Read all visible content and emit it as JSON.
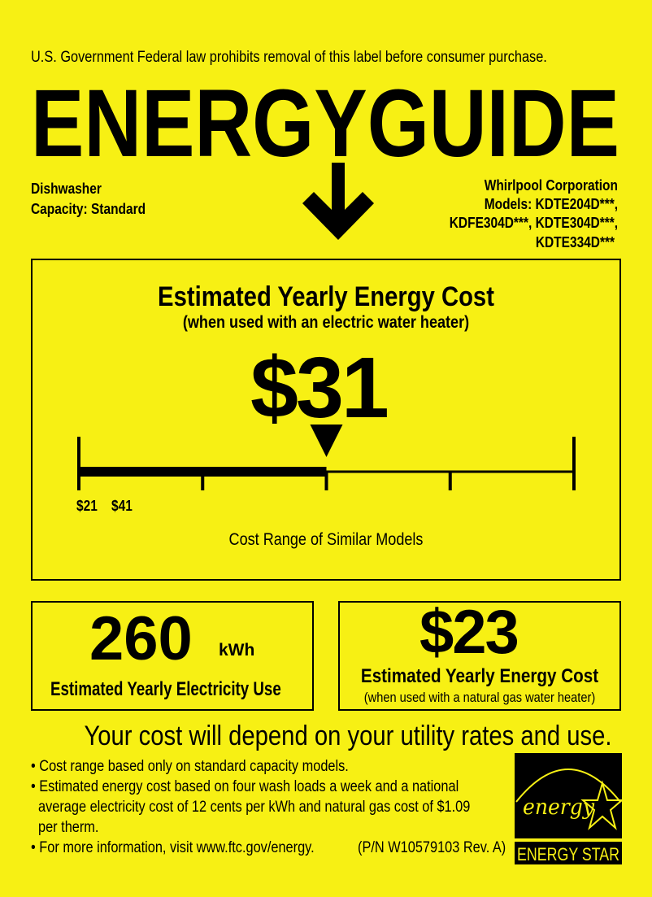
{
  "header": {
    "notice": "U.S. Government  Federal law prohibits removal of this label before consumer purchase.",
    "logo_text": "ENERGYGUIDE"
  },
  "product": {
    "type": "Dishwasher",
    "capacity": "Capacity: Standard"
  },
  "manufacturer": {
    "name": "Whirlpool Corporation",
    "models_line1": "Models: KDTE204D***,",
    "models_line2": "KDFE304D***, KDTE304D***,",
    "models_line3": "KDTE334D***"
  },
  "main_cost": {
    "title": "Estimated Yearly Energy Cost",
    "subtitle": "(when used with an electric water heater)",
    "value": "$31",
    "range_low_label": "$21",
    "range_high_label": "$41",
    "range_low": 21,
    "range_high": 41,
    "marker_value": 31,
    "range_caption": "Cost Range of Similar Models"
  },
  "electricity": {
    "value": "260",
    "unit": "kWh",
    "label": "Estimated Yearly Electricity Use"
  },
  "gas_cost": {
    "value": "$23",
    "label": "Estimated Yearly Energy Cost",
    "sublabel": "(when used with a natural gas water heater)"
  },
  "footer": {
    "headline": "Your cost will depend on your utility rates and use.",
    "bullets": [
      "Cost range based only on standard capacity models.",
      "Estimated energy cost based on four wash loads a week and a national",
      "average electricity cost of 12 cents per kWh and natural gas cost of $1.09",
      "per therm.",
      "For more information, visit www.ftc.gov/energy."
    ],
    "part_number": "(P/N W10579103 Rev. A)"
  },
  "energy_star": {
    "script_text": "energy",
    "label": "ENERGY STAR"
  },
  "colors": {
    "background": "#f7f014",
    "ink": "#000000"
  }
}
